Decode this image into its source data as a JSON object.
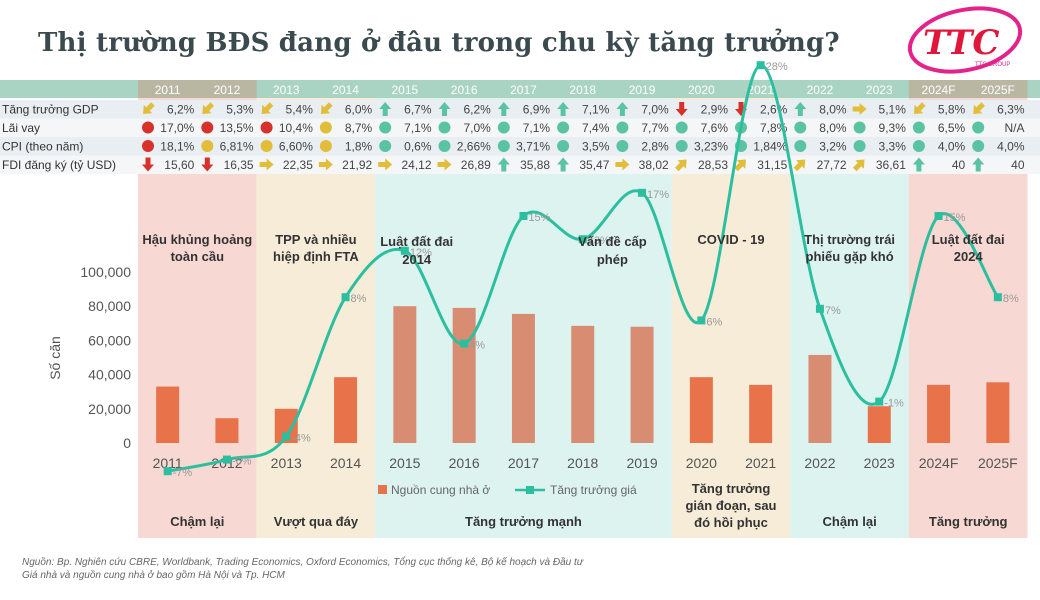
{
  "title": "Thị trường BĐS đang ở đâu trong chu kỳ tăng trưởng?",
  "logo": {
    "text": "TTC",
    "subtext": "TTC GROUP"
  },
  "years": [
    "2011",
    "2012",
    "2013",
    "2014",
    "2015",
    "2016",
    "2017",
    "2018",
    "2019",
    "2020",
    "2021",
    "2022",
    "2023",
    "2024F",
    "2025F"
  ],
  "indicators": [
    {
      "label": "Tăng trưởng GDP",
      "values": [
        {
          "v": "6,2%",
          "i": "yellow-down-arrow"
        },
        {
          "v": "5,3%",
          "i": "yellow-down-arrow"
        },
        {
          "v": "5,4%",
          "i": "yellow-down-arrow"
        },
        {
          "v": "6,0%",
          "i": "yellow-down-arrow"
        },
        {
          "v": "6,7%",
          "i": "green-up-arrow"
        },
        {
          "v": "6,2%",
          "i": "green-up-arrow"
        },
        {
          "v": "6,9%",
          "i": "green-up-arrow"
        },
        {
          "v": "7,1%",
          "i": "green-up-arrow"
        },
        {
          "v": "7,0%",
          "i": "green-up-arrow"
        },
        {
          "v": "2,9%",
          "i": "red-down-arrow"
        },
        {
          "v": "2,6%",
          "i": "red-down-arrow"
        },
        {
          "v": "8,0%",
          "i": "green-up-arrow"
        },
        {
          "v": "5,1%",
          "i": "yellow-right-arrow"
        },
        {
          "v": "5,8%",
          "i": "yellow-down-arrow"
        },
        {
          "v": "6,3%",
          "i": "yellow-down-arrow"
        }
      ]
    },
    {
      "label": "Lãi vay",
      "values": [
        {
          "v": "17,0%",
          "i": "red-dot"
        },
        {
          "v": "13,5%",
          "i": "red-dot"
        },
        {
          "v": "10,4%",
          "i": "red-dot"
        },
        {
          "v": "8,7%",
          "i": "yellow-dot"
        },
        {
          "v": "7,1%",
          "i": "green-dot"
        },
        {
          "v": "7,0%",
          "i": "green-dot"
        },
        {
          "v": "7,1%",
          "i": "green-dot"
        },
        {
          "v": "7,4%",
          "i": "green-dot"
        },
        {
          "v": "7,7%",
          "i": "green-dot"
        },
        {
          "v": "7,6%",
          "i": "green-dot"
        },
        {
          "v": "7,8%",
          "i": "green-dot"
        },
        {
          "v": "8,0%",
          "i": "green-dot"
        },
        {
          "v": "9,3%",
          "i": "green-dot"
        },
        {
          "v": "6,5%",
          "i": "green-dot"
        },
        {
          "v": "N/A",
          "i": "green-dot"
        }
      ]
    },
    {
      "label": "CPI (theo năm)",
      "values": [
        {
          "v": "18,1%",
          "i": "red-dot"
        },
        {
          "v": "6,81%",
          "i": "yellow-dot"
        },
        {
          "v": "6,60%",
          "i": "yellow-dot"
        },
        {
          "v": "1,8%",
          "i": "yellow-dot"
        },
        {
          "v": "0,6%",
          "i": "green-dot"
        },
        {
          "v": "2,66%",
          "i": "green-dot"
        },
        {
          "v": "3,71%",
          "i": "green-dot"
        },
        {
          "v": "3,5%",
          "i": "green-dot"
        },
        {
          "v": "2,8%",
          "i": "green-dot"
        },
        {
          "v": "3,23%",
          "i": "green-dot"
        },
        {
          "v": "1,84%",
          "i": "green-dot"
        },
        {
          "v": "3,2%",
          "i": "green-dot"
        },
        {
          "v": "3,3%",
          "i": "green-dot"
        },
        {
          "v": "4,0%",
          "i": "green-dot"
        },
        {
          "v": "4,0%",
          "i": "green-dot"
        }
      ]
    },
    {
      "label": "FDI đăng ký (tỷ USD)",
      "values": [
        {
          "v": "15,60",
          "i": "red-down-arrow"
        },
        {
          "v": "16,35",
          "i": "red-down-arrow"
        },
        {
          "v": "22,35",
          "i": "yellow-right-arrow"
        },
        {
          "v": "21,92",
          "i": "yellow-right-arrow"
        },
        {
          "v": "24,12",
          "i": "yellow-right-arrow"
        },
        {
          "v": "26,89",
          "i": "yellow-right-arrow"
        },
        {
          "v": "35,88",
          "i": "green-up-arrow"
        },
        {
          "v": "35,47",
          "i": "green-up-arrow"
        },
        {
          "v": "38,02",
          "i": "yellow-right-arrow"
        },
        {
          "v": "28,53",
          "i": "yellow-up-arrow"
        },
        {
          "v": "31,15",
          "i": "yellow-up-arrow"
        },
        {
          "v": "27,72",
          "i": "yellow-up-arrow"
        },
        {
          "v": "36,61",
          "i": "yellow-up-arrow"
        },
        {
          "v": "40",
          "i": "green-up-arrow"
        },
        {
          "v": "40",
          "i": "green-up-arrow"
        }
      ]
    }
  ],
  "phases": [
    {
      "from": 0,
      "to": 1,
      "color": "#f7d8d2",
      "top_label": "Hậu khủng hoảng toàn cầu",
      "bottom_label": "Chậm lại"
    },
    {
      "from": 2,
      "to": 3,
      "color": "#f6ecd8",
      "top_label": "TPP và nhiều hiệp định FTA",
      "bottom_label": "Vượt qua đáy"
    },
    {
      "from": 4,
      "to": 8,
      "color": "#dcf3ef",
      "top_label": "",
      "bottom_label": "Tăng trưởng mạnh"
    },
    {
      "from": 9,
      "to": 10,
      "color": "#f6ecd8",
      "top_label": "COVID - 19",
      "bottom_label": "Tăng trưởng gián đoạn, sau đó hồi phục"
    },
    {
      "from": 11,
      "to": 12,
      "color": "#dcf3ef",
      "top_label": "Thị trường trái phiếu gặp khó",
      "bottom_label": "Chậm lại"
    },
    {
      "from": 13,
      "to": 14,
      "color": "#f7d8d2",
      "top_label": "Luật đất đai 2024",
      "bottom_label": "Tăng trưởng"
    }
  ],
  "events": [
    {
      "pos": 4.2,
      "label": "Luật đất đai 2014"
    },
    {
      "pos": 7.5,
      "label": "Vấn đề cấp phép"
    }
  ],
  "chart_data": {
    "type": "bar",
    "categories": [
      "2011",
      "2012",
      "2013",
      "2014",
      "2015",
      "2016",
      "2017",
      "2018",
      "2019",
      "2020",
      "2021",
      "2022",
      "2023",
      "2024F",
      "2025F"
    ],
    "ylabel": "Số căn",
    "ylim": [
      0,
      100000
    ],
    "yticks": [
      "0",
      "20,000",
      "40,000",
      "60,000",
      "80,000",
      "100,000"
    ],
    "series": [
      {
        "name": "Nguồn cung nhà ở",
        "type": "bar",
        "color": "#e8734a",
        "values": [
          33000,
          14500,
          20000,
          38500,
          80000,
          79000,
          75500,
          68500,
          68000,
          38500,
          34000,
          51500,
          21500,
          34000,
          35500
        ]
      },
      {
        "name": "Tăng trưởng giá",
        "type": "line",
        "color": "#2cbf9f",
        "values": [
          -7,
          -6,
          -4,
          8,
          12,
          4,
          15,
          13,
          17,
          6,
          28,
          7,
          -1,
          15,
          8
        ],
        "labels": [
          "-7%",
          "-6%",
          "-4%",
          "8%",
          "12%",
          "4%",
          "15%",
          "13%",
          "17%",
          "6%",
          "28%",
          "7%",
          "-1%",
          "15%",
          "8%"
        ]
      }
    ]
  },
  "source_lines": [
    "Nguồn: Bp. Nghiên cứu CBRE, Worldbank, Trading Economics, Oxford Economics, Tổng cục thống kê, Bộ kế hoạch và Đầu tư",
    "Giá nhà và nguồn cung nhà ở bao gồm Hà Nội và Tp. HCM"
  ]
}
